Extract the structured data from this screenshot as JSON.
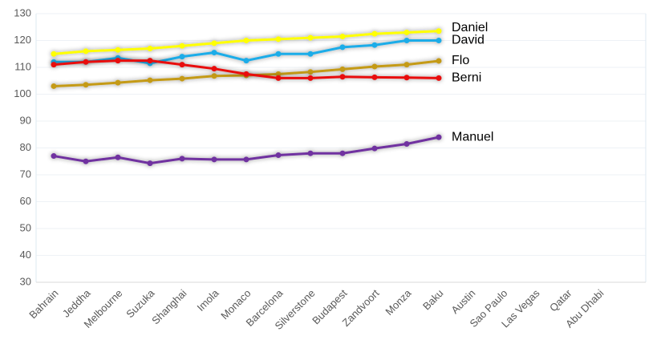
{
  "chart_data": {
    "type": "line",
    "categories": [
      "Bahrain",
      "Jeddha",
      "Melbourne",
      "Suzuka",
      "Shanghai",
      "Imola",
      "Monaco",
      "Barcelona",
      "Silverstone",
      "Budapest",
      "Zandvoort",
      "Monza",
      "Baku",
      "Austin",
      "Sao Paulo",
      "Las Vegas",
      "Qatar",
      "Abu Dhabi"
    ],
    "series": [
      {
        "name": "Daniel",
        "color": "#ffff00",
        "values": [
          115,
          116,
          116.5,
          117,
          118,
          119,
          120,
          120.5,
          121,
          121.5,
          122.5,
          123,
          123.5,
          null,
          null,
          null,
          null,
          null
        ]
      },
      {
        "name": "David",
        "color": "#1cace8",
        "values": [
          112,
          112,
          113.5,
          111.5,
          114,
          115.5,
          112.5,
          115,
          115,
          117.5,
          118.3,
          120,
          120,
          null,
          null,
          null,
          null,
          null
        ]
      },
      {
        "name": "Flo",
        "color": "#c49a18",
        "values": [
          103,
          103.5,
          104.3,
          105.2,
          105.8,
          106.8,
          107,
          107.5,
          108.3,
          109.3,
          110.3,
          111,
          112.4,
          null,
          null,
          null,
          null,
          null
        ]
      },
      {
        "name": "Berni",
        "color": "#e81010",
        "values": [
          111,
          112,
          112.5,
          112.5,
          111,
          109.5,
          107.5,
          106,
          106,
          106.5,
          106.3,
          106.2,
          106,
          null,
          null,
          null,
          null,
          null
        ]
      },
      {
        "name": "Manuel",
        "color": "#7030a0",
        "values": [
          77,
          75,
          76.5,
          74.3,
          76,
          75.7,
          75.7,
          77.3,
          78,
          78,
          79.8,
          81.5,
          84,
          null,
          null,
          null,
          null,
          null
        ]
      }
    ],
    "ylim": [
      30,
      130
    ],
    "yticks": [
      30,
      40,
      50,
      60,
      70,
      80,
      90,
      100,
      110,
      120,
      130
    ],
    "grid": true
  }
}
